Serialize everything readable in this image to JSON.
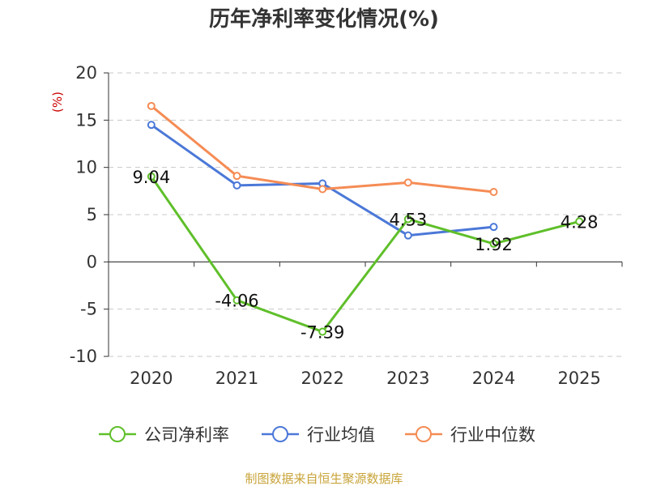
{
  "chart_data": {
    "type": "line",
    "title": "历年净利率变化情况(%)",
    "ylabel": "(%)",
    "xlabel": "",
    "categories": [
      "2020",
      "2021",
      "2022",
      "2023",
      "2024",
      "2025"
    ],
    "ylim": [
      -10,
      20
    ],
    "yticks": [
      20,
      15,
      10,
      5,
      0,
      -5,
      -10
    ],
    "grid": true,
    "legend_position": "bottom",
    "series": [
      {
        "name": "公司净利率",
        "color": "#5fbf2a",
        "values": [
          9.04,
          -4.06,
          -7.39,
          4.53,
          1.92,
          4.28
        ],
        "labels": [
          "9.04",
          "-4.06",
          "-7.39",
          "4.53",
          "1.92",
          "4.28"
        ]
      },
      {
        "name": "行业均值",
        "color": "#4b78d8",
        "values": [
          14.5,
          8.1,
          8.3,
          2.8,
          3.7,
          null
        ]
      },
      {
        "name": "行业中位数",
        "color": "#f58c55",
        "values": [
          16.5,
          9.1,
          7.7,
          8.4,
          7.4,
          null
        ]
      }
    ],
    "source": "制图数据来自恒生聚源数据库"
  }
}
